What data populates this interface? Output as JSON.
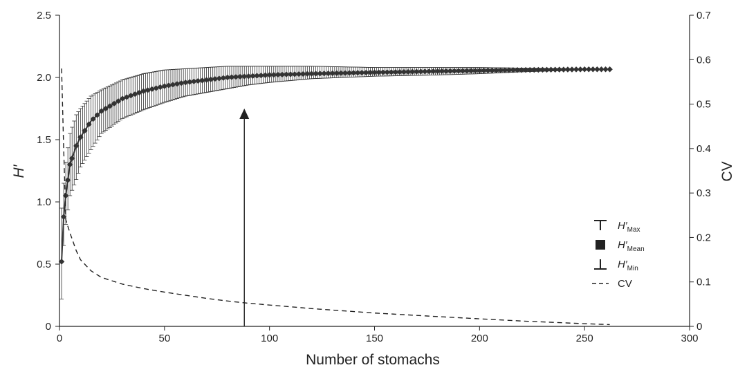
{
  "chart_data": {
    "type": "line",
    "xlabel": "Number of stomachs",
    "ylabel": "H′",
    "y2label": "CV",
    "xlim": [
      0,
      300
    ],
    "ylim": [
      0,
      2.5
    ],
    "y2lim": [
      0,
      0.7
    ],
    "x_ticks": [
      "0",
      "50",
      "100",
      "150",
      "200",
      "250",
      "300"
    ],
    "y_ticks": [
      "0",
      "0.5",
      "1.0",
      "1.5",
      "2.0",
      "2.5"
    ],
    "y2_ticks": [
      "0",
      "0.1",
      "0.2",
      "0.3",
      "0.4",
      "0.5",
      "0.6",
      "0.7"
    ],
    "legend_position": "right",
    "legend": [
      {
        "symbol": "max-bar",
        "label": "H′",
        "sub": "Max"
      },
      {
        "symbol": "square",
        "label": "H′",
        "sub": "Mean"
      },
      {
        "symbol": "min-bar",
        "label": "H′",
        "sub": "Min"
      },
      {
        "symbol": "dashed-line",
        "label": "CV",
        "sub": ""
      }
    ],
    "series": [
      {
        "name": "H′Mean",
        "x": [
          1,
          2,
          3,
          5,
          8,
          10,
          15,
          20,
          30,
          40,
          50,
          60,
          70,
          80,
          90,
          100,
          120,
          150,
          180,
          200,
          220,
          250,
          262
        ],
        "values": [
          0.52,
          0.88,
          1.05,
          1.3,
          1.45,
          1.52,
          1.65,
          1.73,
          1.83,
          1.89,
          1.93,
          1.96,
          1.98,
          2.0,
          2.01,
          2.02,
          2.03,
          2.04,
          2.05,
          2.055,
          2.06,
          2.065,
          2.065
        ],
        "max": [
          0.95,
          1.15,
          1.32,
          1.55,
          1.7,
          1.75,
          1.85,
          1.9,
          1.98,
          2.03,
          2.06,
          2.07,
          2.08,
          2.09,
          2.09,
          2.09,
          2.09,
          2.08,
          2.08,
          2.08,
          2.075,
          2.07,
          2.065
        ],
        "min": [
          0.22,
          0.65,
          0.82,
          1.05,
          1.18,
          1.28,
          1.42,
          1.55,
          1.67,
          1.74,
          1.8,
          1.85,
          1.88,
          1.91,
          1.94,
          1.96,
          1.99,
          2.01,
          2.02,
          2.03,
          2.045,
          2.06,
          2.065
        ]
      },
      {
        "name": "CV",
        "axis": "right",
        "x": [
          1,
          2,
          3,
          5,
          8,
          10,
          15,
          20,
          30,
          40,
          50,
          60,
          70,
          80,
          90,
          100,
          120,
          150,
          180,
          200,
          220,
          250,
          262
        ],
        "values": [
          0.58,
          0.4,
          0.24,
          0.21,
          0.17,
          0.15,
          0.125,
          0.11,
          0.095,
          0.085,
          0.077,
          0.07,
          0.063,
          0.057,
          0.052,
          0.048,
          0.04,
          0.03,
          0.022,
          0.017,
          0.012,
          0.006,
          0.004
        ]
      }
    ],
    "annotations": [
      {
        "type": "arrow",
        "x": 88,
        "y_start": 0,
        "y_end": 1.75
      }
    ]
  }
}
